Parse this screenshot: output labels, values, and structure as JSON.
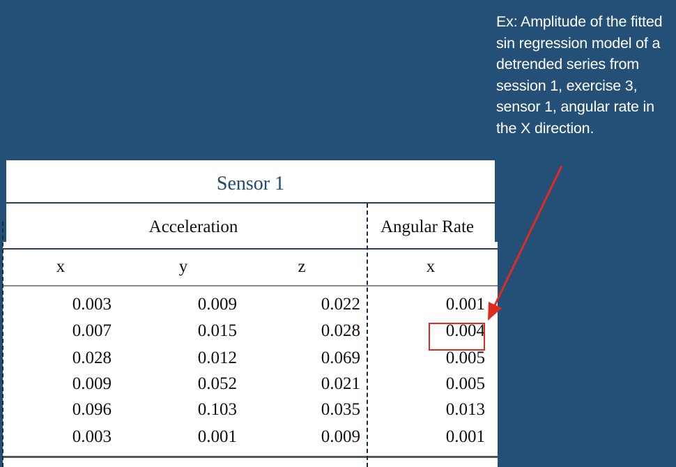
{
  "annotation": {
    "text": "Ex: Amplitude of the fitted sin regression model of a detrended series from session 1, exercise 3, sensor 1, angular rate in the X direction.",
    "color": "#e02a20"
  },
  "table": {
    "title": "Sensor 1",
    "groups": [
      "Acceleration",
      "Angular Rate"
    ],
    "columns": [
      "x",
      "y",
      "z",
      "x"
    ],
    "rows": [
      [
        "0.003",
        "0.009",
        "0.022",
        "0.001"
      ],
      [
        "0.007",
        "0.015",
        "0.028",
        "0.004"
      ],
      [
        "0.028",
        "0.012",
        "0.069",
        "0.005"
      ],
      [
        "0.009",
        "0.052",
        "0.021",
        "0.005"
      ],
      [
        "0.096",
        "0.103",
        "0.035",
        "0.013"
      ],
      [
        "0.003",
        "0.001",
        "0.009",
        "0.001"
      ]
    ],
    "highlighted_cell": {
      "row": 1,
      "column": 3
    }
  },
  "colors": {
    "background": "#245078",
    "title": "#1f4a75",
    "highlight": "#e02a20"
  }
}
